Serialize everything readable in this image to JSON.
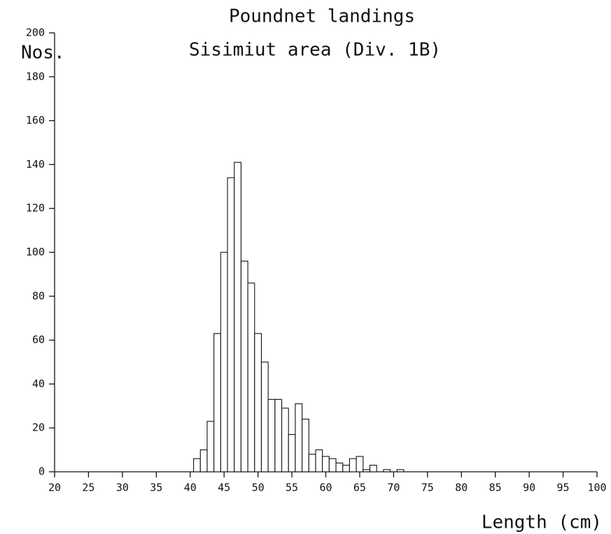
{
  "chart_data": {
    "type": "histogram",
    "title": "Poundnet landings",
    "subtitle": "Sisimiut area (Div. 1B)",
    "y_label": "Nos.",
    "x_label": "Length (cm)",
    "bins": [
      40.5,
      41.5,
      42.5,
      43.5,
      44.5,
      45.5,
      46.5,
      47.5,
      48.5,
      49.5,
      50.5,
      51.5,
      52.5,
      53.5,
      54.5,
      55.5,
      56.5,
      57.5,
      58.5,
      59.5,
      60.5,
      61.5,
      62.5,
      63.5,
      64.5,
      65.5,
      66.5,
      67.5,
      68.5,
      69.5,
      70.5,
      71.5
    ],
    "values": [
      6,
      10,
      23,
      63,
      100,
      134,
      141,
      96,
      86,
      63,
      50,
      33,
      33,
      29,
      17,
      31,
      24,
      8,
      10,
      7,
      6,
      4,
      3,
      6,
      7,
      1,
      3,
      0,
      1,
      0,
      1
    ],
    "color": "#ffffff",
    "xlim": [
      20,
      100
    ],
    "ylim": [
      0,
      200
    ],
    "xticks": [
      20,
      25,
      30,
      35,
      40,
      45,
      50,
      55,
      60,
      65,
      70,
      75,
      80,
      85,
      90,
      95,
      100
    ],
    "yticks": [
      0,
      20,
      40,
      60,
      80,
      100,
      120,
      140,
      160,
      180,
      200
    ]
  }
}
